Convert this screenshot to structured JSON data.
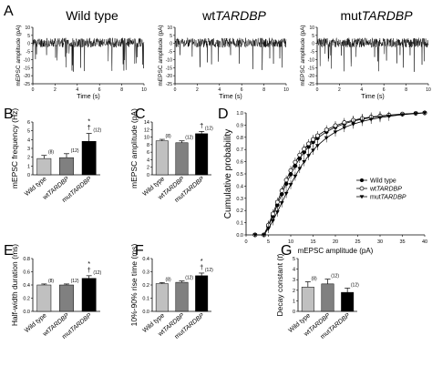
{
  "chart_data": [
    {
      "panel": "A",
      "type": "line",
      "traces": [
        {
          "title": "Wild type",
          "title_italic": "",
          "seed": 11
        },
        {
          "title": "wt",
          "title_italic": "TARDBP",
          "seed": 23
        },
        {
          "title": "mut",
          "title_italic": "TARDBP",
          "seed": 37
        }
      ],
      "ylabel": "mEPSC amplitude (pA)",
      "xlabel": "Time (s)",
      "ylim": [
        -25,
        10
      ],
      "yticks": [
        -25,
        -20,
        -15,
        -10,
        -5,
        0,
        5,
        10
      ],
      "xlim": [
        0,
        10
      ],
      "xticks": [
        0,
        2,
        4,
        6,
        8,
        10
      ]
    },
    {
      "panel": "B",
      "type": "bar",
      "categories": [
        {
          "plain": "Wild type",
          "italic": ""
        },
        {
          "plain": "wt",
          "italic": "TARDBP"
        },
        {
          "plain": "mut",
          "italic": "TARDBP"
        }
      ],
      "values": [
        1.85,
        1.95,
        3.8
      ],
      "errors": [
        0.35,
        0.45,
        0.9
      ],
      "n_labels": [
        "(8)",
        "(12)",
        "(12)"
      ],
      "marks": [
        "",
        "",
        "*\n†"
      ],
      "ylabel": "mEPSC frequency (Hz)",
      "ylim": [
        0,
        6
      ],
      "yticks": [
        0,
        1,
        2,
        3,
        4,
        5,
        6
      ]
    },
    {
      "panel": "C",
      "type": "bar",
      "categories": [
        {
          "plain": "Wild type",
          "italic": ""
        },
        {
          "plain": "wt",
          "italic": "TARDBP"
        },
        {
          "plain": "mut",
          "italic": "TARDBP"
        }
      ],
      "values": [
        9.0,
        8.5,
        10.9
      ],
      "errors": [
        0.4,
        0.5,
        0.6
      ],
      "n_labels": [
        "(8)",
        "(12)",
        "(12)"
      ],
      "marks": [
        "",
        "",
        "†"
      ],
      "ylabel": "mEPSC amplitude (pA)",
      "ylim": [
        0,
        14
      ],
      "yticks": [
        0,
        2,
        4,
        6,
        8,
        10,
        12,
        14
      ]
    },
    {
      "panel": "D",
      "type": "line",
      "series": [
        {
          "name_plain": "Wild type",
          "name_italic": "",
          "marker": "circle-filled",
          "median": 9.5
        },
        {
          "name_plain": "wt",
          "name_italic": "TARDBP",
          "marker": "circle-open",
          "median": 9.0
        },
        {
          "name_plain": "mut",
          "name_italic": "TARDBP",
          "marker": "triangle-down",
          "median": 11.0
        }
      ],
      "x": [
        2,
        4,
        5,
        6,
        7,
        8,
        9,
        10,
        11,
        12,
        13,
        14,
        15,
        16,
        18,
        20,
        22,
        24,
        26,
        28,
        30,
        32,
        35,
        38,
        40
      ],
      "ylabel": "Cumulative probability",
      "xlabel": "mEPSC amplitude (pA)",
      "xlim": [
        0,
        40
      ],
      "xticks": [
        0,
        5,
        10,
        15,
        20,
        25,
        30,
        35,
        40
      ],
      "ylim": [
        0.0,
        1.0
      ],
      "yticks": [
        "0.0",
        "0.1",
        "0.2",
        "0.3",
        "0.4",
        "0.5",
        "0.6",
        "0.7",
        "0.8",
        "0.9",
        "1.0"
      ],
      "legend_position": "right"
    },
    {
      "panel": "E",
      "type": "bar",
      "categories": [
        {
          "plain": "Wild type",
          "italic": ""
        },
        {
          "plain": "wt",
          "italic": "TARDBP"
        },
        {
          "plain": "mut",
          "italic": "TARDBP"
        }
      ],
      "values": [
        0.4,
        0.4,
        0.5
      ],
      "errors": [
        0.015,
        0.015,
        0.04
      ],
      "n_labels": [
        "(8)",
        "(12)",
        "(12)"
      ],
      "marks": [
        "",
        "",
        "*\n†"
      ],
      "ylabel": "Half-width duration (ms)",
      "ylim": [
        0.0,
        0.8
      ],
      "yticks": [
        "0.0",
        "0.2",
        "0.4",
        "0.6",
        "0.8"
      ]
    },
    {
      "panel": "F",
      "type": "bar",
      "categories": [
        {
          "plain": "Wild type",
          "italic": ""
        },
        {
          "plain": "wt",
          "italic": "TARDBP"
        },
        {
          "plain": "mut",
          "italic": "TARDBP"
        }
      ],
      "values": [
        0.21,
        0.22,
        0.27
      ],
      "errors": [
        0.008,
        0.01,
        0.02
      ],
      "n_labels": [
        "(8)",
        "(12)",
        "(12)"
      ],
      "marks": [
        "",
        "",
        "*\n†"
      ],
      "ylabel": "10%-90% rise time (ms)",
      "ylim": [
        0.0,
        0.4
      ],
      "yticks": [
        "0.0",
        "0.1",
        "0.2",
        "0.3",
        "0.4"
      ]
    },
    {
      "panel": "G",
      "type": "bar",
      "categories": [
        {
          "plain": "Wild type",
          "italic": ""
        },
        {
          "plain": "wt",
          "italic": "TARDBP"
        },
        {
          "plain": "mut",
          "italic": "TARDBP"
        }
      ],
      "values": [
        2.3,
        2.6,
        1.8
      ],
      "errors": [
        0.5,
        0.45,
        0.4
      ],
      "n_labels": [
        "(8)",
        "(12)",
        "(12)"
      ],
      "marks": [
        "",
        "",
        ""
      ],
      "ylabel": "Decay constant (",
      "ylabel_italic": "t",
      "ylabel_suffix": ")",
      "ylim": [
        0,
        5
      ],
      "yticks": [
        0,
        1,
        2,
        3,
        4,
        5
      ]
    }
  ],
  "colors": {
    "bar_fills": [
      "#c0c0c0",
      "#808080",
      "#000000"
    ],
    "trace": "#000000"
  }
}
